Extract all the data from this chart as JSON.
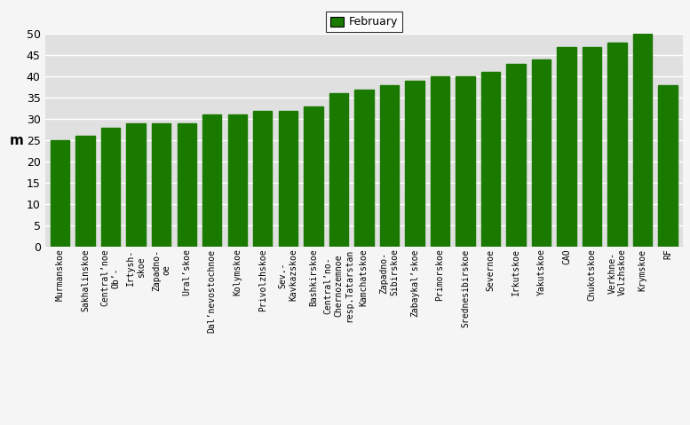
{
  "categories": [
    "Murmanskoe",
    "Sakhalinskoe",
    "Central’noe\nOb’-",
    "Irtysh-\nskoe",
    "Zapadno-\noe",
    "Ural’skoe",
    "Dal’nevostochnoe",
    "Kolymskoe",
    "Privolzhskoe",
    "Sev.-\nKavkazskoe",
    "Bashkirskoe",
    "Central’no-\nChernozemnoe\nresp.Tatarstan",
    "Kamchatskoe",
    "Zapadno-\nSibirskoe",
    "Zabaykal’skoe",
    "Primorskoe",
    "Srednesibirskoe",
    "Severnoe",
    "Irkutskoe",
    "Yakutskoe",
    "CAO",
    "Chukotskoe",
    "Verkhne-\nVolzhskoe",
    "Krymskoe",
    "RF"
  ],
  "values": [
    25,
    26,
    28,
    29,
    29,
    29,
    31,
    31,
    32,
    32,
    33,
    36,
    37,
    38,
    39,
    40,
    40,
    41,
    43,
    44,
    47,
    47,
    48,
    50,
    38
  ],
  "bar_color": "#1a7a00",
  "ylabel": "m",
  "ylim": [
    0,
    50
  ],
  "yticks": [
    0,
    5,
    10,
    15,
    20,
    25,
    30,
    35,
    40,
    45,
    50
  ],
  "legend_label": "February",
  "legend_color": "#1a7a00",
  "plot_bg_color": "#e0e0e0",
  "fig_bg_color": "#f5f5f5",
  "axis_fontsize": 9,
  "tick_fontsize": 7,
  "legend_fontsize": 9
}
